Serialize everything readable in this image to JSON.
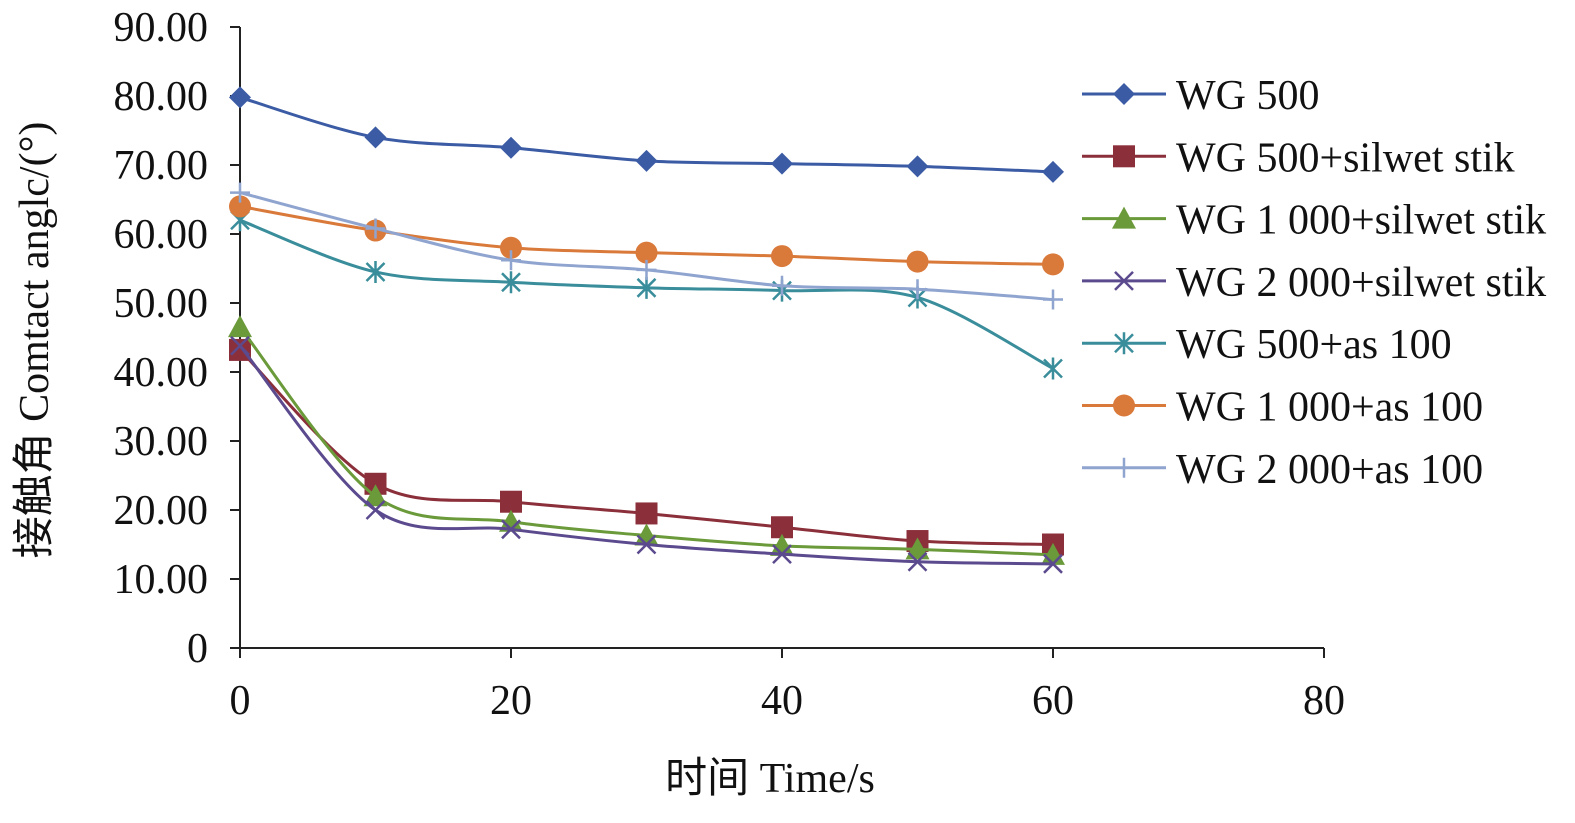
{
  "chart_data": {
    "type": "line",
    "xlabel": "时间 Time/s",
    "ylabel": "接触角 Comtact anglc/(°)",
    "xlim": [
      0,
      80
    ],
    "ylim": [
      0,
      90
    ],
    "x_ticks": [
      "0",
      "20",
      "40",
      "60",
      "80"
    ],
    "y_ticks": [
      "0",
      "10.00",
      "20.00",
      "30.00",
      "40.00",
      "50.00",
      "60.00",
      "70.00",
      "80.00",
      "90.00"
    ],
    "grid": false,
    "legend_position": "right",
    "x": [
      0,
      10,
      20,
      30,
      40,
      50,
      60
    ],
    "series": [
      {
        "name": "WG 500",
        "marker": "diamond",
        "color": "#3B5BA5",
        "values": [
          79.8,
          74.0,
          72.5,
          70.6,
          70.2,
          69.8,
          69.0
        ]
      },
      {
        "name": "WG 500+silwet stik",
        "marker": "square",
        "color": "#8B2F3A",
        "values": [
          43.2,
          23.8,
          21.2,
          19.5,
          17.5,
          15.5,
          15.0
        ]
      },
      {
        "name": "WG 1 000+silwet stik",
        "marker": "triangle",
        "color": "#6A9A3A",
        "values": [
          46.5,
          22.0,
          18.3,
          16.3,
          14.8,
          14.3,
          13.5
        ]
      },
      {
        "name": "WG 2 000+silwet stik",
        "marker": "x",
        "color": "#5B4A8E",
        "values": [
          43.8,
          20.0,
          17.2,
          15.0,
          13.6,
          12.5,
          12.2
        ]
      },
      {
        "name": "WG 500+as 100",
        "marker": "asterisk",
        "color": "#3A8D9B",
        "values": [
          62.0,
          54.5,
          53.0,
          52.2,
          51.8,
          50.8,
          40.5
        ]
      },
      {
        "name": "WG 1 000+as 100",
        "marker": "circle",
        "color": "#D9793A",
        "values": [
          64.0,
          60.5,
          58.0,
          57.3,
          56.8,
          56.0,
          55.6
        ]
      },
      {
        "name": "WG 2 000+as 100",
        "marker": "plus",
        "color": "#8FA4CF",
        "values": [
          66.0,
          60.8,
          56.2,
          54.8,
          52.5,
          52.0,
          50.5
        ]
      }
    ]
  }
}
